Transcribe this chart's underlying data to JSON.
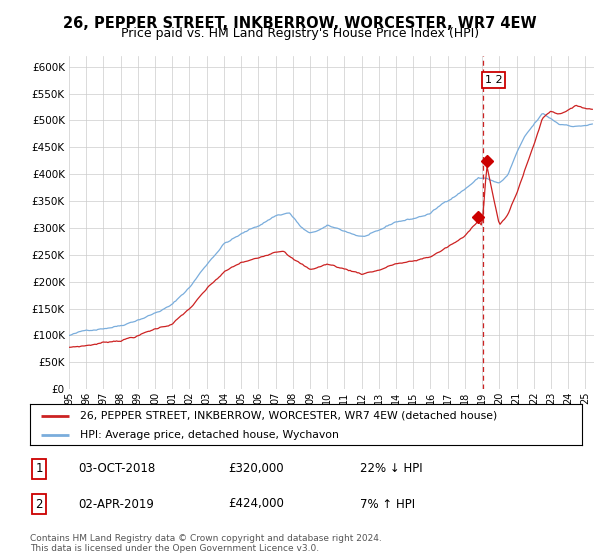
{
  "title": "26, PEPPER STREET, INKBERROW, WORCESTER, WR7 4EW",
  "subtitle": "Price paid vs. HM Land Registry's House Price Index (HPI)",
  "title_fontsize": 10.5,
  "subtitle_fontsize": 9,
  "legend_line1": "26, PEPPER STREET, INKBERROW, WORCESTER, WR7 4EW (detached house)",
  "legend_line2": "HPI: Average price, detached house, Wychavon",
  "hpi_color": "#7aaddc",
  "price_color": "#cc2222",
  "marker_color": "#cc0000",
  "vline_color": "#cc2222",
  "annotation_box_color": "#cc0000",
  "footer": "Contains HM Land Registry data © Crown copyright and database right 2024.\nThis data is licensed under the Open Government Licence v3.0.",
  "table": [
    {
      "num": "1",
      "date": "03-OCT-2018",
      "price": "£320,000",
      "change": "22% ↓ HPI"
    },
    {
      "num": "2",
      "date": "02-APR-2019",
      "price": "£424,000",
      "change": "7% ↑ HPI"
    }
  ],
  "sale1_year": 2018.76,
  "sale1_price": 320000,
  "sale2_year": 2019.27,
  "sale2_price": 424000,
  "vline_year": 2019.05,
  "ylim": [
    0,
    620000
  ],
  "yticks": [
    0,
    50000,
    100000,
    150000,
    200000,
    250000,
    300000,
    350000,
    400000,
    450000,
    500000,
    550000,
    600000
  ],
  "background_color": "#ffffff",
  "grid_color": "#cccccc"
}
